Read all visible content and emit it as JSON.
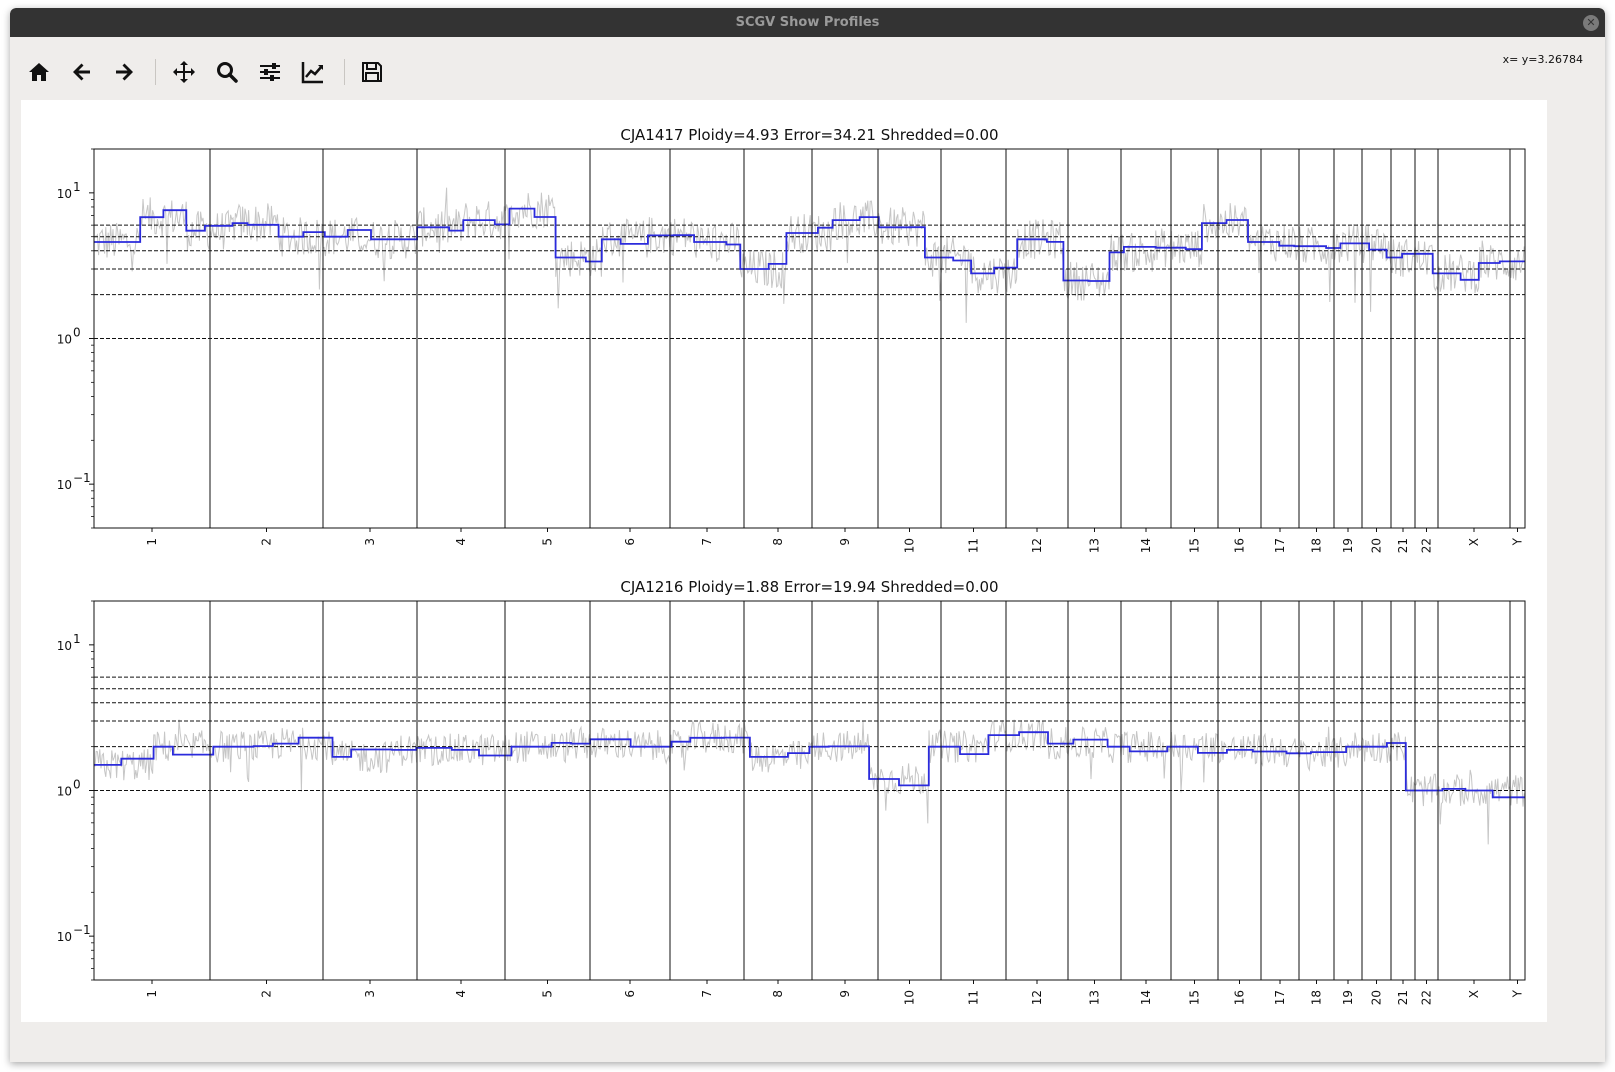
{
  "window": {
    "title": "SCGV Show Profiles",
    "close_icon": "close-icon"
  },
  "toolbar": {
    "buttons": [
      {
        "name": "home-icon",
        "tooltip": "Home"
      },
      {
        "name": "back-icon",
        "tooltip": "Back"
      },
      {
        "name": "forward-icon",
        "tooltip": "Forward"
      },
      {
        "name": "pan-icon",
        "tooltip": "Pan"
      },
      {
        "name": "zoom-icon",
        "tooltip": "Zoom"
      },
      {
        "name": "configure-subplots-icon",
        "tooltip": "Subplots"
      },
      {
        "name": "edit-axis-icon",
        "tooltip": "Customize"
      },
      {
        "name": "save-icon",
        "tooltip": "Save"
      }
    ],
    "coordinates": "x= y=3.26784"
  },
  "chart_data": [
    {
      "type": "line",
      "title": "CJA1417 Ploidy=4.93 Error=34.21 Shredded=0.00",
      "yscale": "log",
      "ylim": [
        0.05,
        20
      ],
      "y_ticks": [
        {
          "value": 10,
          "label": "10"
        },
        {
          "value": 1,
          "label": "10"
        },
        {
          "value": 0.1,
          "label": "10"
        }
      ],
      "y_tick_exponents": [
        "1",
        "0",
        "−1"
      ],
      "reference_lines": [
        1,
        2,
        3,
        4,
        5,
        6
      ],
      "chromosomes": [
        "1",
        "2",
        "3",
        "4",
        "5",
        "6",
        "7",
        "8",
        "9",
        "10",
        "11",
        "12",
        "13",
        "14",
        "15",
        "16",
        "17",
        "18",
        "19",
        "20",
        "21",
        "22",
        "X",
        "Y"
      ],
      "series": [
        {
          "color": "#c6c6c6",
          "kind": "raw"
        },
        {
          "color": "#2b2bdc",
          "kind": "segmented",
          "segments": [
            4.6,
            6.8,
            5.5,
            6.2,
            5.0,
            5.0,
            4.8,
            5.8,
            6.5,
            7.8,
            3.6,
            4.8,
            5.1,
            4.6,
            3.0,
            5.3,
            6.5,
            5.8,
            3.6,
            2.8,
            4.8,
            2.5,
            3.9,
            4.2,
            6.2,
            4.6,
            4.3,
            4.5,
            3.6,
            2.8,
            3.3
          ]
        }
      ]
    },
    {
      "type": "line",
      "title": "CJA1216 Ploidy=1.88 Error=19.94 Shredded=0.00",
      "yscale": "log",
      "ylim": [
        0.05,
        20
      ],
      "y_ticks": [
        {
          "value": 10,
          "label": "10"
        },
        {
          "value": 1,
          "label": "10"
        },
        {
          "value": 0.1,
          "label": "10"
        }
      ],
      "y_tick_exponents": [
        "1",
        "0",
        "−1"
      ],
      "reference_lines": [
        1,
        2,
        3,
        4,
        5,
        6
      ],
      "chromosomes": [
        "1",
        "2",
        "3",
        "4",
        "5",
        "6",
        "7",
        "8",
        "9",
        "10",
        "11",
        "12",
        "13",
        "14",
        "15",
        "16",
        "17",
        "18",
        "19",
        "20",
        "21",
        "22",
        "X",
        "Y"
      ],
      "series": [
        {
          "color": "#c6c6c6",
          "kind": "raw"
        },
        {
          "color": "#2b2bdc",
          "kind": "segmented",
          "segments": [
            1.5,
            2.0,
            2.0,
            2.1,
            1.7,
            1.9,
            1.9,
            2.0,
            2.1,
            2.0,
            2.3,
            1.7,
            2.0,
            1.2,
            2.0,
            2.4,
            2.1,
            2.0,
            2.0,
            1.9,
            1.8,
            2.0,
            1.0,
            1.0
          ]
        }
      ]
    }
  ]
}
